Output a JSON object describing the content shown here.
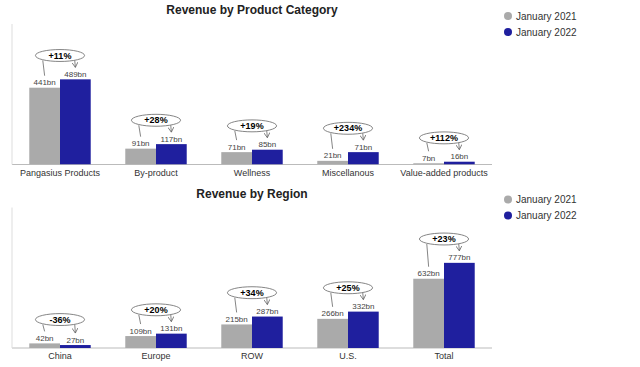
{
  "chart_data": [
    {
      "type": "bar",
      "title": "Revenue by Product Category",
      "categories": [
        "Pangasius Products",
        "By-product",
        "Wellness",
        "Miscellanous",
        "Value-added products"
      ],
      "series": [
        {
          "name": "January 2021",
          "color": "#aaaaaa",
          "values": [
            441,
            91,
            71,
            21,
            7
          ],
          "value_labels": [
            "441bn",
            "91bn",
            "71bn",
            "21bn",
            "7bn"
          ]
        },
        {
          "name": "January 2022",
          "color": "#1f1f9e",
          "values": [
            489,
            117,
            85,
            71,
            16
          ],
          "value_labels": [
            "489bn",
            "117bn",
            "85bn",
            "71bn",
            "16bn"
          ]
        }
      ],
      "annotations": [
        "+11%",
        "+28%",
        "+19%",
        "+234%",
        "+112%"
      ],
      "ylim": [
        0,
        806.85
      ],
      "yticks": [],
      "grid": false,
      "legend": "right",
      "data_labels": true,
      "tick_labels": "x"
    },
    {
      "type": "bar",
      "title": "Revenue by Region",
      "categories": [
        "China",
        "Europe",
        "ROW",
        "U.S.",
        "Total"
      ],
      "series": [
        {
          "name": "January 2021",
          "color": "#aaaaaa",
          "values": [
            42,
            109,
            215,
            266,
            632
          ],
          "value_labels": [
            "42bn",
            "109bn",
            "215bn",
            "266bn",
            "632bn"
          ]
        },
        {
          "name": "January 2022",
          "color": "#1f1f9e",
          "values": [
            27,
            131,
            287,
            332,
            777
          ],
          "value_labels": [
            "27bn",
            "131bn",
            "287bn",
            "332bn",
            "777bn"
          ]
        }
      ],
      "annotations": [
        "-36%",
        "+20%",
        "+34%",
        "+25%",
        "+23%"
      ],
      "ylim": [
        0,
        1282.05
      ],
      "yticks": [],
      "grid": false,
      "legend": "right",
      "data_labels": true,
      "tick_labels": "x"
    }
  ]
}
